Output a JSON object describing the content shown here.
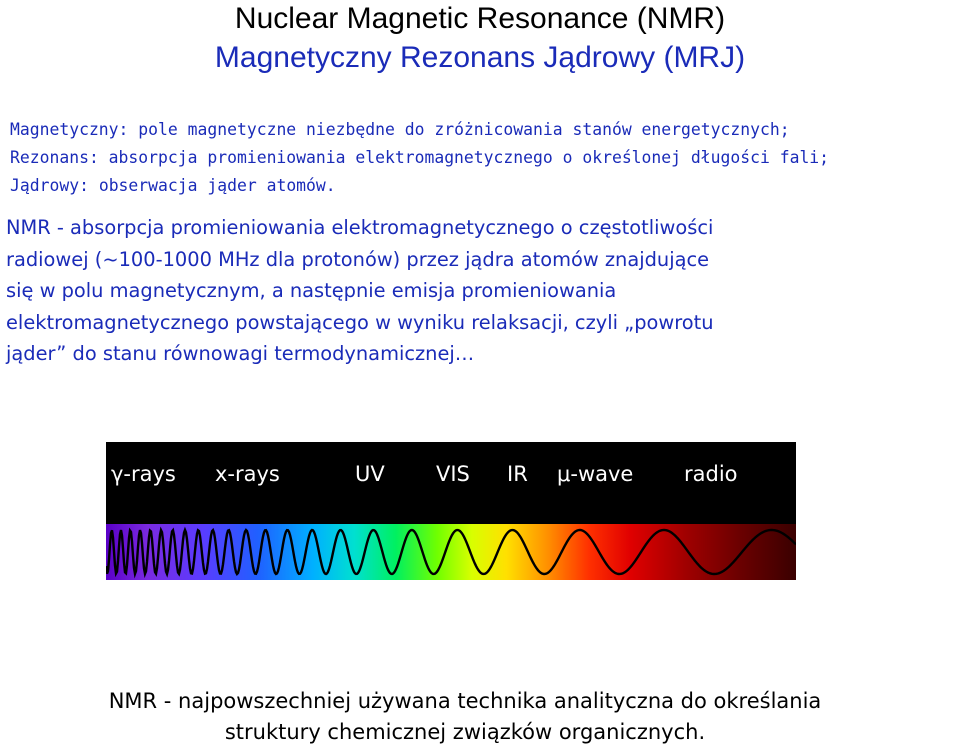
{
  "header": {
    "title_en": "Nuclear Magnetic Resonance (NMR)",
    "title_pl": "Magnetyczny Rezonans Jądrowy (MRJ)"
  },
  "definitions": [
    {
      "term": "Magnetyczny:",
      "text": " pole magnetyczne niezbędne do zróżnicowania stanów energetycznych;"
    },
    {
      "term": "Rezonans:",
      "text": " absorpcja promieniowania elektromagnetycznego o określonej długości fali;"
    },
    {
      "term": "Jądrowy:",
      "text": " obserwacja jąder atomów."
    }
  ],
  "nmr_description": {
    "lines": [
      "NMR - absorpcja promieniowania elektromagnetycznego o częstotliwości",
      "radiowej (~100-1000 MHz dla protonów) przez jądra atomów znajdujące",
      "się w polu magnetycznym, a następnie emisja promieniowania",
      "elektromagnetycznego powstającego w wyniku relaksacji, czyli „powrotu",
      "jąder” do stanu równowagi termodynamicznej…"
    ]
  },
  "spectrum": {
    "labels": [
      "γ-rays",
      "x-rays",
      "UV",
      "VIS",
      "IR",
      "μ-wave",
      "radio"
    ]
  },
  "conclusion": {
    "line1": "NMR - najpowszechniej używana technika analityczna do określania",
    "line2": "struktury chemicznej związków organicznych."
  },
  "colors": {
    "accent_blue": "#1a2bb8",
    "text_black": "#000000",
    "panel_black": "#000000"
  }
}
